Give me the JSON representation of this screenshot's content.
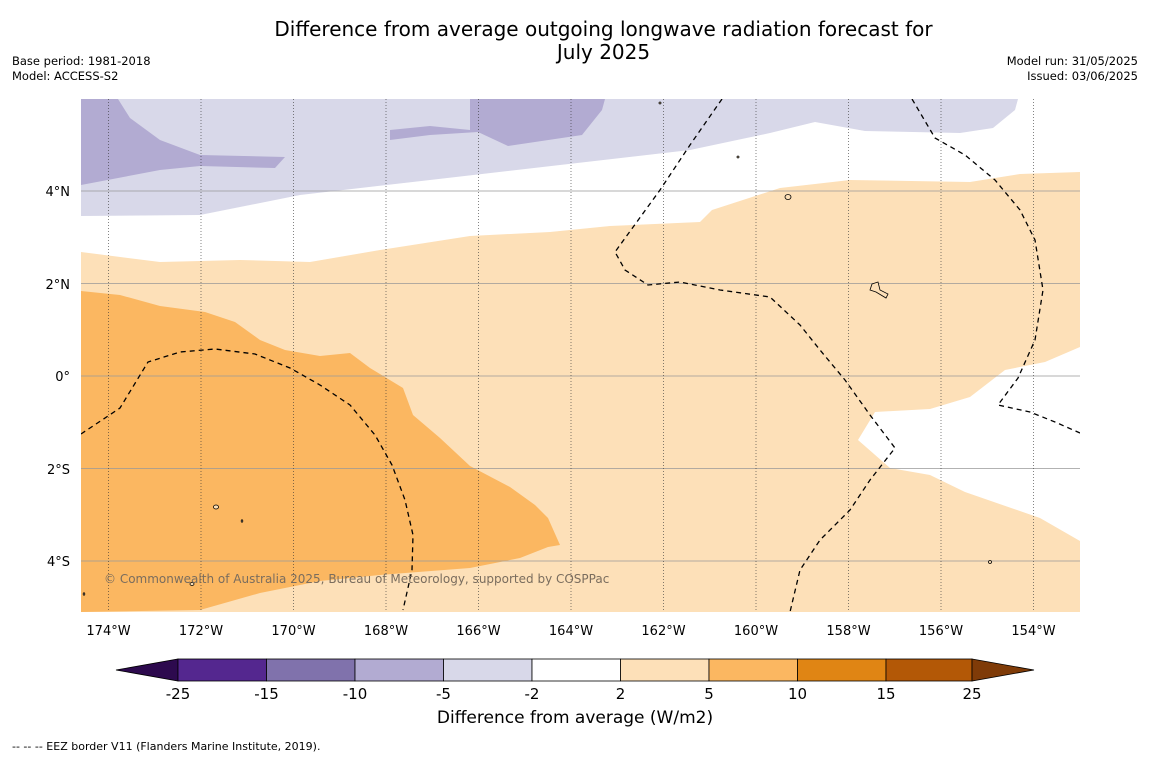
{
  "header": {
    "title_line1": "Difference from average outgoing longwave radiation forecast for",
    "title_line2": "July 2025",
    "base_period": "Base period: 1981-2018",
    "model": "Model: ACCESS-S2",
    "model_run": "Model run: 31/05/2025",
    "issued": "Issued: 03/06/2025"
  },
  "map": {
    "lat_labels": [
      "4°N",
      "2°N",
      "0°",
      "2°S",
      "4°S"
    ],
    "lon_labels": [
      "174°W",
      "172°W",
      "170°W",
      "168°W",
      "166°W",
      "164°W",
      "162°W",
      "160°W",
      "158°W",
      "156°W",
      "154°W"
    ],
    "copyright": "© Commonwealth of Australia 2025, Bureau of Meteorology, supported by COSPPac"
  },
  "colorbar": {
    "ticks": [
      "-25",
      "-15",
      "-10",
      "-5",
      "-2",
      "2",
      "5",
      "10",
      "15",
      "25"
    ],
    "colors": [
      "#2d0a4e",
      "#54278f",
      "#8072ac",
      "#b2abd2",
      "#d8d8e9",
      "#ffffff",
      "#fde0b8",
      "#fbb761",
      "#e08514",
      "#b35806",
      "#7f3b08"
    ],
    "label": "Difference from average (W/m2)"
  },
  "footer": {
    "eez_note": "--  --  -- EEZ border V11 (Flanders Marine Institute, 2019)."
  }
}
